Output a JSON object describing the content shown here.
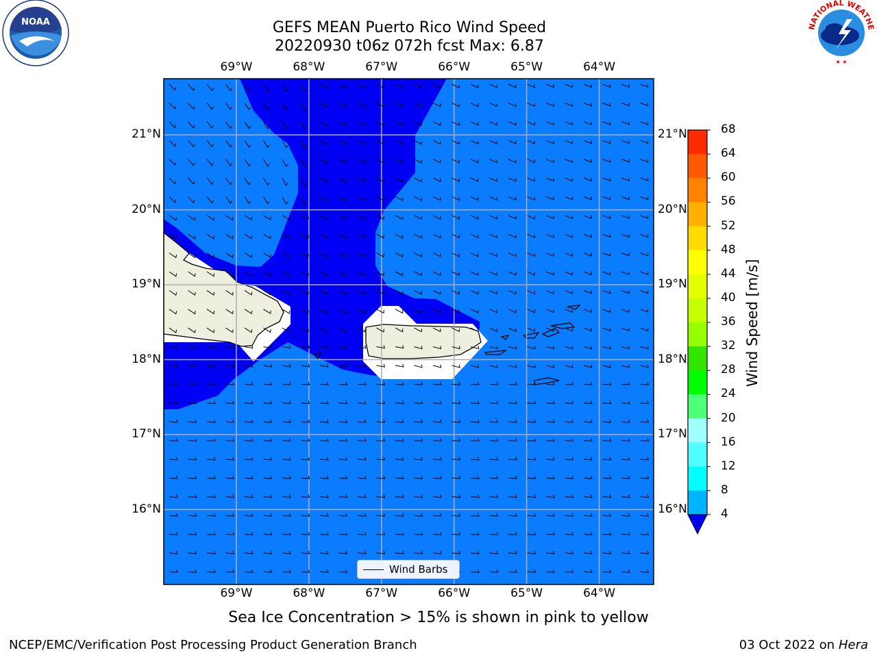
{
  "title_line1": "GEFS MEAN Puerto Rico Wind Speed",
  "title_line2": "20220930 t06z 072h fcst   Max: 6.87",
  "logos": {
    "left": "NOAA",
    "left_ring": "NATIONAL OCEANIC AND ATMOSPHERIC ADMINISTRATION · U.S. DEPARTMENT OF COMMERCE",
    "right_ring": "NATIONAL WEATHER SERVICE"
  },
  "map": {
    "lon_ticks": [
      "69°W",
      "68°W",
      "67°W",
      "66°W",
      "65°W",
      "64°W"
    ],
    "lat_ticks": [
      "21°N",
      "20°N",
      "19°N",
      "18°N",
      "17°N",
      "16°N"
    ],
    "lon_range": [
      -70,
      -63.25
    ],
    "lat_range": [
      15,
      21.75
    ],
    "ocean_color": "#0a7cff",
    "low_wind_color": "#0000f5",
    "land_color": "#efefdf"
  },
  "colorbar": {
    "label": "Wind Speed [m/s]",
    "levels": [
      "68",
      "64",
      "60",
      "56",
      "52",
      "48",
      "44",
      "40",
      "36",
      "32",
      "28",
      "24",
      "20",
      "16",
      "12",
      "8",
      "4"
    ],
    "colors": [
      "#ff0000",
      "#ff2a00",
      "#ff5a00",
      "#ff8200",
      "#ffb000",
      "#ffdc00",
      "#ffff00",
      "#e6ff00",
      "#c8ff00",
      "#96ff00",
      "#32e600",
      "#00ff00",
      "#50ff78",
      "#a0ffff",
      "#50ffff",
      "#00ffff",
      "#00b4ff",
      "#0a7cff"
    ],
    "extend_color": "#0000f5"
  },
  "legend_label": "Wind Barbs",
  "note": "Sea Ice Concentration > 15% is shown in pink to yellow",
  "footer_left": "NCEP/EMC/Verification Post Processing Product Generation Branch",
  "footer_right_date": "03 Oct 2022 on ",
  "footer_right_host": "Hera"
}
